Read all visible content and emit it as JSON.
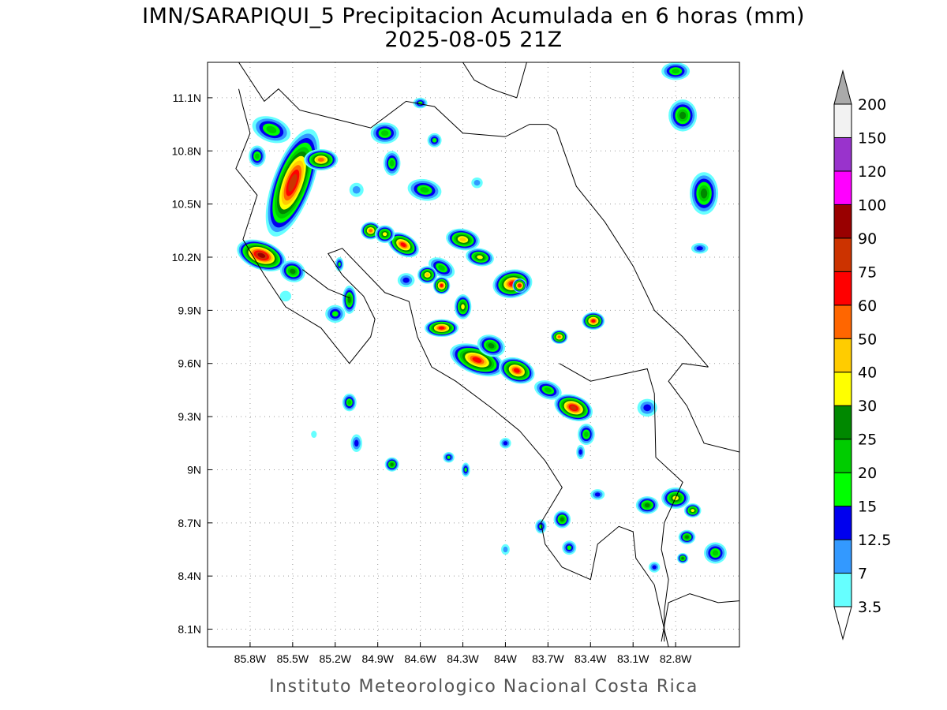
{
  "title": {
    "line1": "IMN/SARAPIQUI_5 Precipitacion Acumulada en 6 horas (mm)",
    "line2": "2025-08-05 21Z"
  },
  "footer": "Instituto Meteorologico Nacional Costa Rica",
  "map": {
    "lon_range": [
      -86.1,
      -82.35
    ],
    "lat_range": [
      8.0,
      11.3
    ],
    "lat_ticks": [
      {
        "value": 11.1,
        "label": "11.1N"
      },
      {
        "value": 10.8,
        "label": "10.8N"
      },
      {
        "value": 10.5,
        "label": "10.5N"
      },
      {
        "value": 10.2,
        "label": "10.2N"
      },
      {
        "value": 9.9,
        "label": "9.9N"
      },
      {
        "value": 9.6,
        "label": "9.6N"
      },
      {
        "value": 9.3,
        "label": "9.3N"
      },
      {
        "value": 9.0,
        "label": "9N"
      },
      {
        "value": 8.7,
        "label": "8.7N"
      },
      {
        "value": 8.4,
        "label": "8.4N"
      },
      {
        "value": 8.1,
        "label": "8.1N"
      }
    ],
    "lon_ticks": [
      {
        "value": -85.8,
        "label": "85.8W"
      },
      {
        "value": -85.5,
        "label": "85.5W"
      },
      {
        "value": -85.2,
        "label": "85.2W"
      },
      {
        "value": -84.9,
        "label": "84.9W"
      },
      {
        "value": -84.6,
        "label": "84.6W"
      },
      {
        "value": -84.3,
        "label": "84.3W"
      },
      {
        "value": -84.0,
        "label": "84W"
      },
      {
        "value": -83.7,
        "label": "83.7W"
      },
      {
        "value": -83.4,
        "label": "83.4W"
      },
      {
        "value": -83.1,
        "label": "83.1W"
      },
      {
        "value": -82.8,
        "label": "82.8W"
      }
    ],
    "grid": true
  },
  "colorbar": {
    "levels": [
      {
        "label": "3.5",
        "color": "#66ffff"
      },
      {
        "label": "7",
        "color": "#3399ff"
      },
      {
        "label": "12.5",
        "color": "#0000ee"
      },
      {
        "label": "15",
        "color": "#00ff00"
      },
      {
        "label": "20",
        "color": "#00cc00"
      },
      {
        "label": "25",
        "color": "#008800"
      },
      {
        "label": "30",
        "color": "#ffff00"
      },
      {
        "label": "40",
        "color": "#ffcc00"
      },
      {
        "label": "50",
        "color": "#ff6600"
      },
      {
        "label": "60",
        "color": "#ff0000"
      },
      {
        "label": "75",
        "color": "#cc3300"
      },
      {
        "label": "90",
        "color": "#990000"
      },
      {
        "label": "100",
        "color": "#ff00ff"
      },
      {
        "label": "120",
        "color": "#9933cc"
      },
      {
        "label": "150",
        "color": "#f2f2f2"
      },
      {
        "label": "200",
        "color": "#aaaaaa"
      }
    ]
  },
  "cells": [
    {
      "lon": -85.5,
      "lat": 10.62,
      "rx": 0.14,
      "ry": 0.32,
      "rot": 20,
      "peak": 11
    },
    {
      "lon": -85.3,
      "lat": 10.75,
      "rx": 0.12,
      "ry": 0.06,
      "rot": 0,
      "peak": 9
    },
    {
      "lon": -85.65,
      "lat": 10.92,
      "rx": 0.14,
      "ry": 0.07,
      "rot": 20,
      "peak": 5
    },
    {
      "lon": -85.75,
      "lat": 10.77,
      "rx": 0.06,
      "ry": 0.06,
      "rot": 0,
      "peak": 5
    },
    {
      "lon": -85.72,
      "lat": 10.21,
      "rx": 0.18,
      "ry": 0.08,
      "rot": 20,
      "peak": 12
    },
    {
      "lon": -85.5,
      "lat": 10.12,
      "rx": 0.09,
      "ry": 0.06,
      "rot": 20,
      "peak": 6
    },
    {
      "lon": -85.1,
      "lat": 9.96,
      "rx": 0.05,
      "ry": 0.08,
      "rot": 0,
      "peak": 6
    },
    {
      "lon": -85.2,
      "lat": 9.88,
      "rx": 0.07,
      "ry": 0.05,
      "rot": 0,
      "peak": 4
    },
    {
      "lon": -85.17,
      "lat": 10.16,
      "rx": 0.03,
      "ry": 0.04,
      "rot": 0,
      "peak": 4
    },
    {
      "lon": -84.7,
      "lat": 10.07,
      "rx": 0.06,
      "ry": 0.04,
      "rot": 0,
      "peak": 3
    },
    {
      "lon": -84.95,
      "lat": 10.35,
      "rx": 0.07,
      "ry": 0.05,
      "rot": 0,
      "peak": 9
    },
    {
      "lon": -84.72,
      "lat": 10.27,
      "rx": 0.12,
      "ry": 0.06,
      "rot": 30,
      "peak": 10
    },
    {
      "lon": -84.85,
      "lat": 10.33,
      "rx": 0.07,
      "ry": 0.05,
      "rot": 0,
      "peak": 7
    },
    {
      "lon": -84.85,
      "lat": 10.9,
      "rx": 0.1,
      "ry": 0.06,
      "rot": 0,
      "peak": 5
    },
    {
      "lon": -84.8,
      "lat": 10.73,
      "rx": 0.06,
      "ry": 0.07,
      "rot": 0,
      "peak": 5
    },
    {
      "lon": -84.57,
      "lat": 10.58,
      "rx": 0.12,
      "ry": 0.06,
      "rot": 10,
      "peak": 5
    },
    {
      "lon": -84.5,
      "lat": 10.86,
      "rx": 0.05,
      "ry": 0.04,
      "rot": 0,
      "peak": 4
    },
    {
      "lon": -84.6,
      "lat": 11.07,
      "rx": 0.05,
      "ry": 0.03,
      "rot": 0,
      "peak": 4
    },
    {
      "lon": -85.05,
      "lat": 10.58,
      "rx": 0.05,
      "ry": 0.04,
      "rot": 0,
      "peak": 2
    },
    {
      "lon": -84.3,
      "lat": 10.3,
      "rx": 0.12,
      "ry": 0.06,
      "rot": 10,
      "peak": 8
    },
    {
      "lon": -84.18,
      "lat": 10.2,
      "rx": 0.1,
      "ry": 0.05,
      "rot": 10,
      "peak": 7
    },
    {
      "lon": -84.45,
      "lat": 10.14,
      "rx": 0.1,
      "ry": 0.05,
      "rot": 30,
      "peak": 5
    },
    {
      "lon": -84.55,
      "lat": 10.1,
      "rx": 0.07,
      "ry": 0.05,
      "rot": 0,
      "peak": 8
    },
    {
      "lon": -84.45,
      "lat": 10.04,
      "rx": 0.06,
      "ry": 0.05,
      "rot": 0,
      "peak": 10
    },
    {
      "lon": -83.95,
      "lat": 10.05,
      "rx": 0.14,
      "ry": 0.08,
      "rot": -10,
      "peak": 10
    },
    {
      "lon": -83.9,
      "lat": 10.04,
      "rx": 0.05,
      "ry": 0.04,
      "rot": 0,
      "peak": 11
    },
    {
      "lon": -84.3,
      "lat": 9.92,
      "rx": 0.06,
      "ry": 0.07,
      "rot": 0,
      "peak": 7
    },
    {
      "lon": -84.45,
      "lat": 9.8,
      "rx": 0.12,
      "ry": 0.05,
      "rot": 0,
      "peak": 10
    },
    {
      "lon": -84.2,
      "lat": 9.62,
      "rx": 0.2,
      "ry": 0.08,
      "rot": 20,
      "peak": 10
    },
    {
      "lon": -83.92,
      "lat": 9.56,
      "rx": 0.13,
      "ry": 0.07,
      "rot": 20,
      "peak": 10
    },
    {
      "lon": -84.1,
      "lat": 9.7,
      "rx": 0.1,
      "ry": 0.06,
      "rot": 20,
      "peak": 6
    },
    {
      "lon": -83.52,
      "lat": 9.35,
      "rx": 0.14,
      "ry": 0.07,
      "rot": 20,
      "peak": 11
    },
    {
      "lon": -83.7,
      "lat": 9.45,
      "rx": 0.1,
      "ry": 0.05,
      "rot": 20,
      "peak": 5
    },
    {
      "lon": -83.62,
      "lat": 9.75,
      "rx": 0.06,
      "ry": 0.04,
      "rot": 0,
      "peak": 9
    },
    {
      "lon": -83.38,
      "lat": 9.84,
      "rx": 0.08,
      "ry": 0.05,
      "rot": 0,
      "peak": 10
    },
    {
      "lon": -83.43,
      "lat": 9.2,
      "rx": 0.06,
      "ry": 0.06,
      "rot": 0,
      "peak": 5
    },
    {
      "lon": -83.47,
      "lat": 9.1,
      "rx": 0.03,
      "ry": 0.04,
      "rot": 0,
      "peak": 3
    },
    {
      "lon": -83.0,
      "lat": 9.35,
      "rx": 0.07,
      "ry": 0.05,
      "rot": 0,
      "peak": 3
    },
    {
      "lon": -82.75,
      "lat": 11.0,
      "rx": 0.1,
      "ry": 0.09,
      "rot": 0,
      "peak": 6
    },
    {
      "lon": -82.8,
      "lat": 11.25,
      "rx": 0.1,
      "ry": 0.05,
      "rot": 0,
      "peak": 5
    },
    {
      "lon": -82.6,
      "lat": 10.56,
      "rx": 0.1,
      "ry": 0.12,
      "rot": 0,
      "peak": 6
    },
    {
      "lon": -82.63,
      "lat": 10.25,
      "rx": 0.06,
      "ry": 0.03,
      "rot": 0,
      "peak": 3
    },
    {
      "lon": -85.1,
      "lat": 9.38,
      "rx": 0.05,
      "ry": 0.05,
      "rot": 0,
      "peak": 5
    },
    {
      "lon": -85.05,
      "lat": 9.15,
      "rx": 0.04,
      "ry": 0.05,
      "rot": 0,
      "peak": 3
    },
    {
      "lon": -84.8,
      "lat": 9.03,
      "rx": 0.05,
      "ry": 0.04,
      "rot": 0,
      "peak": 6
    },
    {
      "lon": -84.4,
      "lat": 9.07,
      "rx": 0.04,
      "ry": 0.03,
      "rot": 0,
      "peak": 4
    },
    {
      "lon": -84.28,
      "lat": 9.0,
      "rx": 0.03,
      "ry": 0.04,
      "rot": 0,
      "peak": 4
    },
    {
      "lon": -84.0,
      "lat": 9.15,
      "rx": 0.04,
      "ry": 0.03,
      "rot": 0,
      "peak": 3
    },
    {
      "lon": -83.75,
      "lat": 8.68,
      "rx": 0.04,
      "ry": 0.04,
      "rot": 0,
      "peak": 4
    },
    {
      "lon": -83.6,
      "lat": 8.72,
      "rx": 0.06,
      "ry": 0.05,
      "rot": 0,
      "peak": 6
    },
    {
      "lon": -83.55,
      "lat": 8.56,
      "rx": 0.05,
      "ry": 0.04,
      "rot": 0,
      "peak": 4
    },
    {
      "lon": -83.35,
      "lat": 8.86,
      "rx": 0.05,
      "ry": 0.03,
      "rot": 0,
      "peak": 3
    },
    {
      "lon": -83.0,
      "lat": 8.8,
      "rx": 0.08,
      "ry": 0.05,
      "rot": 0,
      "peak": 6
    },
    {
      "lon": -82.8,
      "lat": 8.84,
      "rx": 0.1,
      "ry": 0.06,
      "rot": 0,
      "peak": 7
    },
    {
      "lon": -82.68,
      "lat": 8.77,
      "rx": 0.06,
      "ry": 0.04,
      "rot": 0,
      "peak": 7
    },
    {
      "lon": -82.72,
      "lat": 8.62,
      "rx": 0.06,
      "ry": 0.04,
      "rot": 0,
      "peak": 6
    },
    {
      "lon": -82.52,
      "lat": 8.53,
      "rx": 0.08,
      "ry": 0.06,
      "rot": 0,
      "peak": 5
    },
    {
      "lon": -82.75,
      "lat": 8.5,
      "rx": 0.04,
      "ry": 0.03,
      "rot": 0,
      "peak": 6
    },
    {
      "lon": -82.95,
      "lat": 8.45,
      "rx": 0.04,
      "ry": 0.03,
      "rot": 0,
      "peak": 3
    },
    {
      "lon": -85.55,
      "lat": 9.98,
      "rx": 0.04,
      "ry": 0.03,
      "rot": 0,
      "peak": 1
    },
    {
      "lon": -84.0,
      "lat": 8.55,
      "rx": 0.03,
      "ry": 0.03,
      "rot": 0,
      "peak": 2
    },
    {
      "lon": -84.2,
      "lat": 10.62,
      "rx": 0.04,
      "ry": 0.03,
      "rot": 0,
      "peak": 2
    },
    {
      "lon": -85.35,
      "lat": 9.2,
      "rx": 0.02,
      "ry": 0.02,
      "rot": 0,
      "peak": 1
    }
  ],
  "coastlines": [
    [
      [
        -85.88,
        11.3
      ],
      [
        -85.7,
        11.08
      ],
      [
        -85.6,
        11.15
      ],
      [
        -85.45,
        11.03
      ],
      [
        -85.2,
        10.98
      ],
      [
        -84.95,
        10.93
      ],
      [
        -84.7,
        11.08
      ],
      [
        -84.5,
        11.05
      ],
      [
        -84.3,
        10.9
      ],
      [
        -84.0,
        10.88
      ],
      [
        -83.83,
        10.95
      ],
      [
        -83.7,
        10.95
      ],
      [
        -83.64,
        10.92
      ]
    ],
    [
      [
        -84.3,
        11.3
      ],
      [
        -84.22,
        11.2
      ],
      [
        -84.1,
        11.15
      ],
      [
        -83.92,
        11.1
      ],
      [
        -83.85,
        11.3
      ]
    ],
    [
      [
        -83.64,
        10.92
      ],
      [
        -83.5,
        10.6
      ],
      [
        -83.3,
        10.4
      ],
      [
        -83.1,
        10.15
      ],
      [
        -82.95,
        9.9
      ],
      [
        -82.75,
        9.75
      ],
      [
        -82.57,
        9.58
      ]
    ],
    [
      [
        -82.57,
        9.58
      ],
      [
        -82.75,
        9.6
      ],
      [
        -82.85,
        9.5
      ],
      [
        -82.72,
        9.36
      ],
      [
        -82.6,
        9.15
      ],
      [
        -82.35,
        9.1
      ]
    ],
    [
      [
        -85.88,
        11.15
      ],
      [
        -85.85,
        11.05
      ],
      [
        -85.8,
        10.9
      ],
      [
        -85.9,
        10.7
      ],
      [
        -85.75,
        10.55
      ],
      [
        -85.85,
        10.3
      ],
      [
        -85.7,
        10.1
      ],
      [
        -85.55,
        9.92
      ],
      [
        -85.3,
        9.8
      ],
      [
        -85.1,
        9.6
      ],
      [
        -84.95,
        9.75
      ],
      [
        -84.92,
        9.85
      ],
      [
        -85.0,
        9.98
      ],
      [
        -85.15,
        10.1
      ],
      [
        -85.25,
        10.22
      ],
      [
        -85.15,
        10.25
      ],
      [
        -84.85,
        10.0
      ],
      [
        -84.68,
        9.95
      ],
      [
        -84.62,
        9.75
      ],
      [
        -84.52,
        9.58
      ],
      [
        -84.35,
        9.5
      ],
      [
        -84.1,
        9.35
      ],
      [
        -83.9,
        9.22
      ],
      [
        -83.72,
        9.05
      ],
      [
        -83.6,
        8.9
      ],
      [
        -83.75,
        8.7
      ],
      [
        -83.72,
        8.58
      ],
      [
        -83.6,
        8.45
      ],
      [
        -83.4,
        8.38
      ],
      [
        -83.35,
        8.58
      ],
      [
        -83.2,
        8.68
      ],
      [
        -83.1,
        8.65
      ],
      [
        -83.08,
        8.5
      ],
      [
        -82.95,
        8.35
      ],
      [
        -82.88,
        8.1
      ],
      [
        -82.85,
        8.0
      ]
    ],
    [
      [
        -85.43,
        10.13
      ],
      [
        -85.25,
        10.02
      ],
      [
        -85.1,
        9.97
      ]
    ],
    [
      [
        -82.9,
        8.03
      ],
      [
        -82.85,
        8.25
      ],
      [
        -82.7,
        8.3
      ],
      [
        -82.5,
        8.25
      ],
      [
        -82.35,
        8.26
      ]
    ]
  ],
  "borders": [
    [
      [
        -83.62,
        9.6
      ],
      [
        -83.4,
        9.5
      ],
      [
        -83.0,
        9.57
      ],
      [
        -82.95,
        9.43
      ],
      [
        -82.94,
        9.07
      ],
      [
        -82.75,
        8.93
      ],
      [
        -82.88,
        8.7
      ],
      [
        -82.9,
        8.55
      ],
      [
        -82.85,
        8.38
      ],
      [
        -82.88,
        8.2
      ],
      [
        -82.88,
        8.03
      ]
    ]
  ]
}
